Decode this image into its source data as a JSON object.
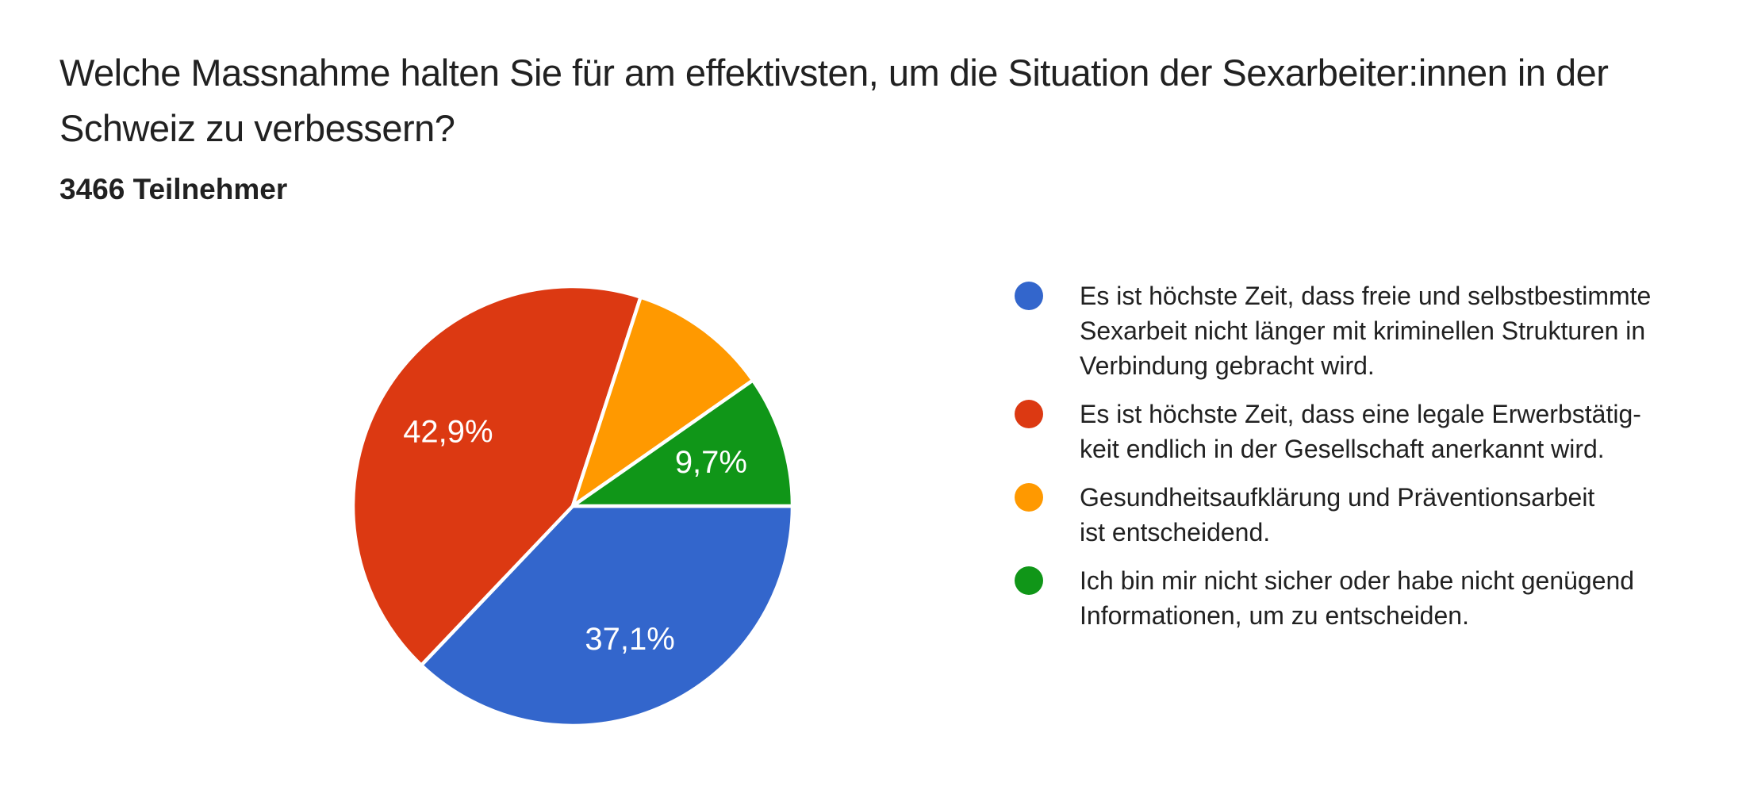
{
  "header": {
    "title_lines": [
      "Welche Massnahme halten Sie für am effektivsten, um die Situation der Sexarbeiter:innen in der",
      "Schweiz zu verbessern?"
    ],
    "participants": "3466 Teilnehmer"
  },
  "chart_data": {
    "type": "pie",
    "title": "Welche Massnahme halten Sie für am effektivsten, um die Situation der Sexarbeiter:innen in der Schweiz zu verbessern?",
    "subtitle": "3466 Teilnehmer",
    "legend_position": "right",
    "start_angle": "east-clockwise",
    "slices": [
      {
        "label": "Es ist höchste Zeit, dass freie und selbstbestimmte Sexarbeit nicht länger mit kriminellen Strukturen in Verbindung gebracht wird.",
        "value": 37.1,
        "pct_label": "37,1%",
        "show_pct_label": true,
        "color": "#3366CC"
      },
      {
        "label": "Es ist höchste Zeit, dass eine legale Erwerbstätigkeit endlich in der Gesellschaft anerkannt wird.",
        "value": 42.9,
        "pct_label": "42,9%",
        "show_pct_label": true,
        "color": "#DC3912"
      },
      {
        "label": "Gesundheitsaufklärung und Präventionsarbeit ist entscheidend.",
        "value": 10.3,
        "pct_label": "",
        "show_pct_label": false,
        "color": "#FF9900"
      },
      {
        "label": "Ich bin mir nicht sicher oder habe nicht genügend Informationen, um zu entscheiden.",
        "value": 9.7,
        "pct_label": "9,7%",
        "show_pct_label": true,
        "color": "#109618"
      }
    ],
    "label_text_color": "#ffffff",
    "slice_separator_color": "#ffffff"
  },
  "legend": {
    "items": [
      {
        "lines": [
          "Es ist höchste Zeit, dass freie und selbstbestimmte",
          "Sexarbeit nicht länger mit kriminellen Strukturen in",
          "Verbindung gebracht wird."
        ]
      },
      {
        "lines": [
          "Es ist höchste Zeit, dass eine legale Erwerbstätig-",
          "keit endlich in der Gesellschaft anerkannt wird."
        ]
      },
      {
        "lines": [
          "Gesundheitsaufklärung und Präventionsarbeit",
          "ist entscheidend."
        ]
      },
      {
        "lines": [
          "Ich bin mir nicht sicher oder habe nicht genügend",
          "Informationen, um zu entscheiden."
        ]
      }
    ]
  }
}
